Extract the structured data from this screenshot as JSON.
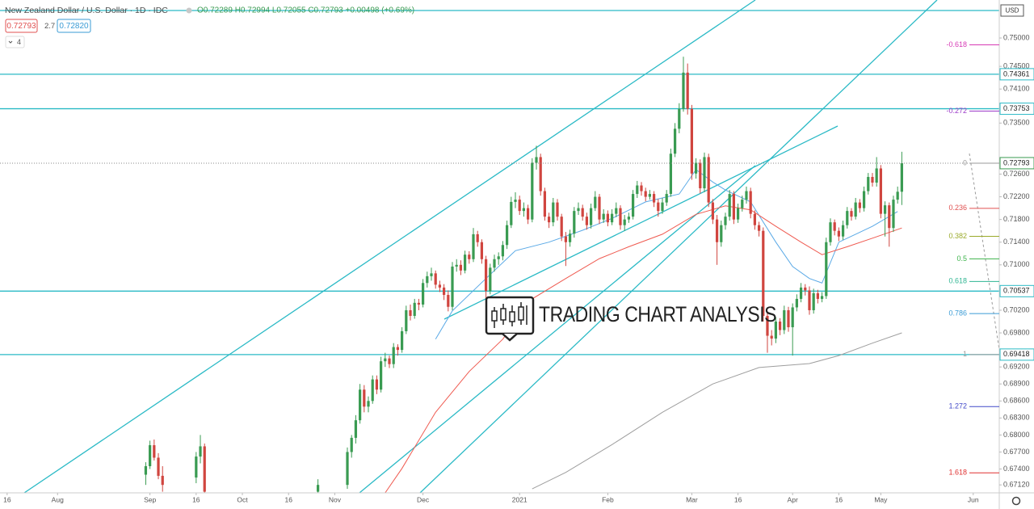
{
  "header": {
    "symbol": "New Zealand Dollar / U.S. Dollar · 1D · IDC",
    "ohlc_text": "O0.72289 H0.72994 L0.72055 C0.72793 +0.00498 (+0.69%)",
    "sell": "0.72793",
    "spread": "2.7",
    "buy": "0.72820",
    "indicators": "4",
    "currency": "USD"
  },
  "chart_data": {
    "type": "candlestick",
    "watermark": "TRADING CHART ANALYSIS",
    "up_color": "#3a9b52",
    "down_color": "#d0453f",
    "line_color": "#2bbac6",
    "xlim": [
      -1.7,
      236.2
    ],
    "ylim": [
      0.6698,
      0.7567
    ],
    "xticks": [
      {
        "value": 0,
        "label": "16"
      },
      {
        "value": 12,
        "label": "Aug"
      },
      {
        "value": 34,
        "label": "Sep"
      },
      {
        "value": 45,
        "label": "16"
      },
      {
        "value": 56,
        "label": "Oct"
      },
      {
        "value": 67,
        "label": "16"
      },
      {
        "value": 78,
        "label": "Nov"
      },
      {
        "value": 99,
        "label": "Dec"
      },
      {
        "value": 122,
        "label": "2021"
      },
      {
        "value": 143,
        "label": "Feb"
      },
      {
        "value": 163,
        "label": "Mar"
      },
      {
        "value": 174,
        "label": "16"
      },
      {
        "value": 187,
        "label": "Apr"
      },
      {
        "value": 198,
        "label": "16"
      },
      {
        "value": 208,
        "label": "May"
      },
      {
        "value": 230,
        "label": "Jun"
      }
    ],
    "yticks": [
      {
        "value": 0.75,
        "label": "0.75000"
      },
      {
        "value": 0.745,
        "label": "0.74500"
      },
      {
        "value": 0.741,
        "label": "0.74100"
      },
      {
        "value": 0.735,
        "label": "0.73500"
      },
      {
        "value": 0.726,
        "label": "0.72600"
      },
      {
        "value": 0.722,
        "label": "0.72200"
      },
      {
        "value": 0.718,
        "label": "0.71800"
      },
      {
        "value": 0.714,
        "label": "0.71400"
      },
      {
        "value": 0.71,
        "label": "0.71000"
      },
      {
        "value": 0.702,
        "label": "0.70200"
      },
      {
        "value": 0.698,
        "label": "0.69800"
      },
      {
        "value": 0.692,
        "label": "0.69200"
      },
      {
        "value": 0.689,
        "label": "0.68900"
      },
      {
        "value": 0.686,
        "label": "0.68600"
      },
      {
        "value": 0.683,
        "label": "0.68300"
      },
      {
        "value": 0.68,
        "label": "0.68000"
      },
      {
        "value": 0.677,
        "label": "0.67700"
      },
      {
        "value": 0.674,
        "label": "0.67400"
      },
      {
        "value": 0.6712,
        "label": "0.67120"
      }
    ],
    "hlines": [
      0.74361,
      0.73753,
      0.70537,
      0.69418
    ],
    "fib_levels": [
      -0.618,
      -0.272,
      0,
      0.236,
      0.382,
      0.5,
      0.618,
      0.786,
      1,
      1.272,
      1.618
    ],
    "fib_colors": [
      "#d63ab5",
      "#9c3bc9",
      "#999999",
      "#e05050",
      "#9aaa2a",
      "#3cb34a",
      "#2fb592",
      "#3a9bd5",
      "#999999",
      "#4048c8",
      "#e03030"
    ],
    "x": [
      33,
      34,
      35,
      36,
      37,
      45,
      46,
      47,
      74,
      81,
      82,
      83,
      84,
      85,
      86,
      87,
      88,
      89,
      90,
      91,
      92,
      93,
      94,
      95,
      96,
      97,
      98,
      99,
      100,
      101,
      102,
      103,
      104,
      105,
      106,
      107,
      108,
      109,
      110,
      111,
      112,
      113,
      114,
      115,
      116,
      117,
      118,
      119,
      120,
      121,
      122,
      123,
      124,
      125,
      126,
      127,
      128,
      129,
      130,
      131,
      132,
      133,
      134,
      135,
      136,
      137,
      138,
      139,
      140,
      141,
      142,
      143,
      144,
      145,
      146,
      147,
      148,
      149,
      150,
      151,
      152,
      153,
      154,
      155,
      156,
      157,
      158,
      159,
      160,
      161,
      162,
      163,
      164,
      165,
      166,
      167,
      168,
      169,
      170,
      171,
      172,
      173,
      174,
      175,
      176,
      177,
      178,
      179,
      180,
      181,
      182,
      183,
      184,
      185,
      186,
      187,
      188,
      189,
      190,
      191,
      192,
      193,
      194,
      195,
      196,
      197,
      198,
      199,
      200,
      201,
      202,
      203,
      204,
      205,
      206,
      207,
      208,
      209,
      210,
      211,
      212,
      213
    ],
    "ohlc": [
      [
        0.673,
        0.6752,
        0.6712,
        0.6745
      ],
      [
        0.6745,
        0.679,
        0.674,
        0.6782
      ],
      [
        0.6782,
        0.6792,
        0.6755,
        0.676
      ],
      [
        0.676,
        0.6768,
        0.6722,
        0.6728
      ],
      [
        0.6728,
        0.6745,
        0.67,
        0.6712
      ],
      [
        0.6725,
        0.677,
        0.6715,
        0.6762
      ],
      [
        0.6762,
        0.68,
        0.675,
        0.678
      ],
      [
        0.678,
        0.6785,
        0.669,
        0.67
      ],
      [
        0.67,
        0.6722,
        0.669,
        0.6712
      ],
      [
        0.6712,
        0.6778,
        0.6705,
        0.677
      ],
      [
        0.677,
        0.68,
        0.676,
        0.6795
      ],
      [
        0.6795,
        0.6835,
        0.6785,
        0.6826
      ],
      [
        0.6826,
        0.689,
        0.682,
        0.688
      ],
      [
        0.688,
        0.6888,
        0.684,
        0.685
      ],
      [
        0.685,
        0.6868,
        0.684,
        0.686
      ],
      [
        0.686,
        0.6905,
        0.6855,
        0.6898
      ],
      [
        0.6898,
        0.6905,
        0.6872,
        0.688
      ],
      [
        0.688,
        0.6938,
        0.6875,
        0.693
      ],
      [
        0.693,
        0.6945,
        0.692,
        0.6935
      ],
      [
        0.6935,
        0.694,
        0.6918,
        0.6925
      ],
      [
        0.6925,
        0.6962,
        0.6918,
        0.6955
      ],
      [
        0.6955,
        0.696,
        0.694,
        0.695
      ],
      [
        0.695,
        0.699,
        0.6945,
        0.6983
      ],
      [
        0.6983,
        0.7028,
        0.6978,
        0.702
      ],
      [
        0.702,
        0.703,
        0.7002,
        0.701
      ],
      [
        0.701,
        0.704,
        0.7005,
        0.7033
      ],
      [
        0.7033,
        0.704,
        0.702,
        0.703
      ],
      [
        0.703,
        0.7075,
        0.7025,
        0.7068
      ],
      [
        0.7068,
        0.7088,
        0.706,
        0.708
      ],
      [
        0.708,
        0.7095,
        0.7072,
        0.7085
      ],
      [
        0.7085,
        0.709,
        0.7058,
        0.7065
      ],
      [
        0.7065,
        0.7072,
        0.7052,
        0.706
      ],
      [
        0.706,
        0.7066,
        0.7038,
        0.7047
      ],
      [
        0.7047,
        0.7055,
        0.7018,
        0.7026
      ],
      [
        0.7026,
        0.7105,
        0.702,
        0.7097
      ],
      [
        0.7097,
        0.711,
        0.7088,
        0.71
      ],
      [
        0.71,
        0.7108,
        0.7082,
        0.709
      ],
      [
        0.709,
        0.7125,
        0.7085,
        0.7118
      ],
      [
        0.7118,
        0.7124,
        0.7102,
        0.711
      ],
      [
        0.711,
        0.7165,
        0.7105,
        0.7154
      ],
      [
        0.7154,
        0.716,
        0.7132,
        0.714
      ],
      [
        0.714,
        0.7145,
        0.7102,
        0.711
      ],
      [
        0.711,
        0.7116,
        0.703,
        0.7054
      ],
      [
        0.7054,
        0.7102,
        0.7048,
        0.7095
      ],
      [
        0.7095,
        0.7118,
        0.7088,
        0.711
      ],
      [
        0.711,
        0.7122,
        0.71,
        0.7115
      ],
      [
        0.7115,
        0.7142,
        0.7108,
        0.7135
      ],
      [
        0.7135,
        0.7178,
        0.7128,
        0.717
      ],
      [
        0.717,
        0.722,
        0.7165,
        0.7211
      ],
      [
        0.7211,
        0.7228,
        0.72,
        0.7215
      ],
      [
        0.7215,
        0.7222,
        0.7188,
        0.7195
      ],
      [
        0.7195,
        0.721,
        0.7185,
        0.72
      ],
      [
        0.72,
        0.7206,
        0.7172,
        0.718
      ],
      [
        0.718,
        0.7288,
        0.7175,
        0.728
      ],
      [
        0.728,
        0.731,
        0.7268,
        0.729
      ],
      [
        0.729,
        0.7296,
        0.7222,
        0.723
      ],
      [
        0.723,
        0.7236,
        0.7178,
        0.7185
      ],
      [
        0.7185,
        0.7192,
        0.7165,
        0.7175
      ],
      [
        0.7175,
        0.7218,
        0.7168,
        0.721
      ],
      [
        0.721,
        0.7216,
        0.7178,
        0.7185
      ],
      [
        0.7185,
        0.719,
        0.7142,
        0.715
      ],
      [
        0.715,
        0.7158,
        0.7098,
        0.714
      ],
      [
        0.714,
        0.7162,
        0.7132,
        0.7155
      ],
      [
        0.7155,
        0.7202,
        0.7148,
        0.7195
      ],
      [
        0.7195,
        0.721,
        0.7188,
        0.72
      ],
      [
        0.72,
        0.7206,
        0.7178,
        0.7185
      ],
      [
        0.7185,
        0.7192,
        0.7162,
        0.717
      ],
      [
        0.717,
        0.7208,
        0.7164,
        0.72
      ],
      [
        0.72,
        0.723,
        0.7195,
        0.722
      ],
      [
        0.722,
        0.7225,
        0.7172,
        0.718
      ],
      [
        0.718,
        0.7198,
        0.7174,
        0.719
      ],
      [
        0.719,
        0.7196,
        0.7168,
        0.7175
      ],
      [
        0.7175,
        0.7198,
        0.717,
        0.719
      ],
      [
        0.719,
        0.721,
        0.7184,
        0.72
      ],
      [
        0.72,
        0.7205,
        0.7162,
        0.717
      ],
      [
        0.717,
        0.7188,
        0.716,
        0.718
      ],
      [
        0.718,
        0.7192,
        0.7174,
        0.7185
      ],
      [
        0.7185,
        0.7232,
        0.718,
        0.7225
      ],
      [
        0.7225,
        0.7248,
        0.7218,
        0.724
      ],
      [
        0.724,
        0.7246,
        0.7222,
        0.723
      ],
      [
        0.723,
        0.7236,
        0.7212,
        0.722
      ],
      [
        0.722,
        0.7232,
        0.7215,
        0.7225
      ],
      [
        0.7225,
        0.723,
        0.7202,
        0.721
      ],
      [
        0.721,
        0.7216,
        0.7185,
        0.7195
      ],
      [
        0.7195,
        0.7218,
        0.719,
        0.721
      ],
      [
        0.721,
        0.7232,
        0.7204,
        0.7225
      ],
      [
        0.7225,
        0.7305,
        0.722,
        0.7296
      ],
      [
        0.7296,
        0.735,
        0.729,
        0.734
      ],
      [
        0.734,
        0.7385,
        0.7332,
        0.7375
      ],
      [
        0.7375,
        0.7467,
        0.737,
        0.7439
      ],
      [
        0.7439,
        0.7455,
        0.7365,
        0.7375
      ],
      [
        0.7375,
        0.7382,
        0.725,
        0.7261
      ],
      [
        0.7261,
        0.7288,
        0.7252,
        0.728
      ],
      [
        0.728,
        0.7286,
        0.7226,
        0.7235
      ],
      [
        0.7235,
        0.7298,
        0.7228,
        0.729
      ],
      [
        0.729,
        0.7296,
        0.7202,
        0.721
      ],
      [
        0.721,
        0.7216,
        0.7172,
        0.718
      ],
      [
        0.718,
        0.7188,
        0.71,
        0.714
      ],
      [
        0.714,
        0.7178,
        0.7132,
        0.717
      ],
      [
        0.717,
        0.7192,
        0.7162,
        0.7185
      ],
      [
        0.7185,
        0.7232,
        0.7178,
        0.7225
      ],
      [
        0.7225,
        0.723,
        0.7172,
        0.718
      ],
      [
        0.718,
        0.7208,
        0.7174,
        0.72
      ],
      [
        0.72,
        0.7222,
        0.7194,
        0.7215
      ],
      [
        0.7215,
        0.7238,
        0.7208,
        0.723
      ],
      [
        0.723,
        0.7236,
        0.7182,
        0.719
      ],
      [
        0.719,
        0.7196,
        0.7162,
        0.717
      ],
      [
        0.717,
        0.7176,
        0.715,
        0.716
      ],
      [
        0.716,
        0.7166,
        0.7,
        0.701
      ],
      [
        0.701,
        0.7018,
        0.6945,
        0.6975
      ],
      [
        0.6975,
        0.6985,
        0.6958,
        0.697
      ],
      [
        0.697,
        0.7008,
        0.6962,
        0.7
      ],
      [
        0.7,
        0.7006,
        0.6976,
        0.6985
      ],
      [
        0.6985,
        0.7028,
        0.6978,
        0.702
      ],
      [
        0.702,
        0.7026,
        0.6982,
        0.699
      ],
      [
        0.699,
        0.7032,
        0.694,
        0.7025
      ],
      [
        0.7025,
        0.7048,
        0.7018,
        0.704
      ],
      [
        0.704,
        0.7068,
        0.7034,
        0.706
      ],
      [
        0.706,
        0.7066,
        0.7046,
        0.7055
      ],
      [
        0.7055,
        0.7062,
        0.7012,
        0.702
      ],
      [
        0.702,
        0.7058,
        0.7014,
        0.705
      ],
      [
        0.705,
        0.7056,
        0.7032,
        0.704
      ],
      [
        0.704,
        0.7052,
        0.7034,
        0.7045
      ],
      [
        0.7045,
        0.7148,
        0.704,
        0.714
      ],
      [
        0.714,
        0.7182,
        0.7134,
        0.7175
      ],
      [
        0.7175,
        0.718,
        0.7152,
        0.716
      ],
      [
        0.716,
        0.7166,
        0.7142,
        0.715
      ],
      [
        0.715,
        0.7178,
        0.7144,
        0.717
      ],
      [
        0.717,
        0.7202,
        0.7164,
        0.7195
      ],
      [
        0.7195,
        0.72,
        0.7178,
        0.7185
      ],
      [
        0.7185,
        0.7218,
        0.718,
        0.721
      ],
      [
        0.721,
        0.7216,
        0.7192,
        0.72
      ],
      [
        0.72,
        0.7238,
        0.7194,
        0.723
      ],
      [
        0.723,
        0.7262,
        0.7224,
        0.7255
      ],
      [
        0.7255,
        0.7262,
        0.7238,
        0.7245
      ],
      [
        0.7245,
        0.729,
        0.7238,
        0.727
      ],
      [
        0.727,
        0.7276,
        0.7182,
        0.719
      ],
      [
        0.719,
        0.7212,
        0.715,
        0.7205
      ],
      [
        0.7205,
        0.721,
        0.7132,
        0.7165
      ],
      [
        0.7165,
        0.7222,
        0.7158,
        0.7215
      ],
      [
        0.7215,
        0.7238,
        0.7208,
        0.72289
      ],
      [
        0.72289,
        0.72994,
        0.72055,
        0.72793
      ]
    ],
    "ma": [
      {
        "color": "#5aa9e6",
        "x": [
          102,
          106,
          114,
          121,
          129,
          137,
          144,
          152,
          160,
          164,
          168,
          171,
          177,
          183,
          187,
          191,
          194,
          198,
          202,
          206,
          212
        ],
        "values": [
          0.6969,
          0.7019,
          0.7076,
          0.7125,
          0.714,
          0.7161,
          0.7182,
          0.7211,
          0.7225,
          0.7268,
          0.7246,
          0.7232,
          0.7211,
          0.714,
          0.7097,
          0.7076,
          0.7068,
          0.714,
          0.7154,
          0.7168,
          0.7194
        ]
      },
      {
        "color": "#ef5a50",
        "x": [
          90,
          94,
          102,
          110,
          118,
          125,
          133,
          141,
          148,
          156,
          164,
          171,
          177,
          183,
          189,
          194,
          200,
          206,
          213
        ],
        "values": [
          0.6698,
          0.6741,
          0.684,
          0.6912,
          0.6969,
          0.704,
          0.7076,
          0.7111,
          0.7132,
          0.7154,
          0.7189,
          0.7204,
          0.7197,
          0.7168,
          0.714,
          0.7118,
          0.7132,
          0.7147,
          0.7165
        ]
      },
      {
        "color": "#9e9e9e",
        "x": [
          125,
          133,
          144,
          156,
          168,
          179,
          191,
          198,
          206,
          213
        ],
        "values": [
          0.6705,
          0.6734,
          0.6783,
          0.684,
          0.689,
          0.6919,
          0.6926,
          0.694,
          0.6962,
          0.698
        ]
      }
    ]
  }
}
